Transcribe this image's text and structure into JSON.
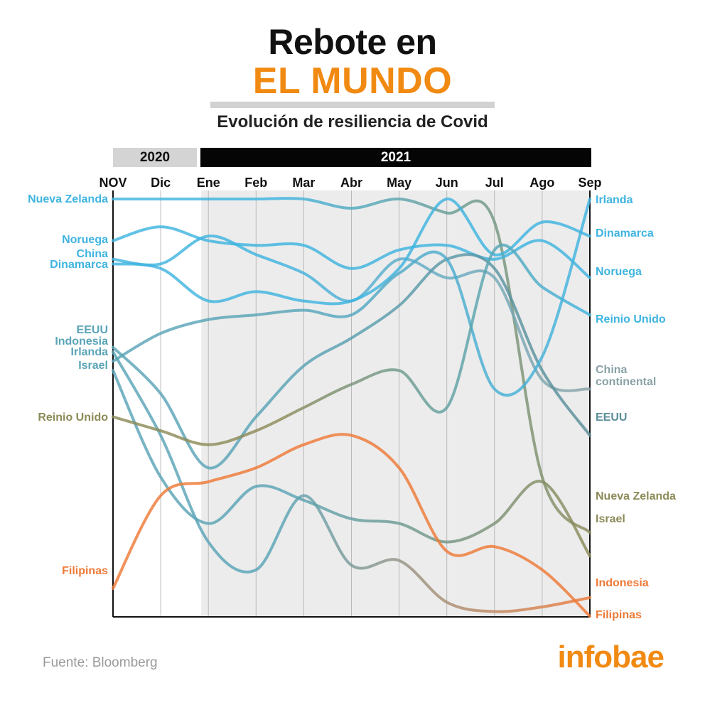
{
  "header": {
    "title_line1": "Rebote en",
    "title_line2": "EL MUNDO",
    "subtitle": "Evolución de resiliencia de Covid"
  },
  "years": {
    "y2020": "2020",
    "y2021": "2021"
  },
  "footer": {
    "source": "Fuente: Bloomberg",
    "logo": "infobae"
  },
  "chart_data": {
    "type": "line",
    "subtype": "bump chart (ranking)",
    "title": "Evolución de resiliencia de Covid",
    "x": [
      "NOV",
      "Dic",
      "Ene",
      "Feb",
      "Mar",
      "Abr",
      "May",
      "Jun",
      "Jul",
      "Ago",
      "Sep"
    ],
    "y_scale": "rank (1 = top)",
    "ylim": [
      1,
      10
    ],
    "grid": "vertical lines at each month",
    "shaded_region": [
      "Ene",
      "Sep"
    ],
    "series": [
      {
        "label_left": "Nueva Zelanda",
        "label_right": "Nueva Zelanda",
        "color_left": "#3fb4e0",
        "color_right": "#8c8a58",
        "values": [
          1,
          1,
          1,
          1,
          1,
          1.2,
          1,
          1.3,
          1.5,
          7.0,
          8.2
        ]
      },
      {
        "label_left": "Noruega",
        "label_right": "Noruega",
        "color_left": "#3fb4e0",
        "color_right": "#3fb4e0",
        "values": [
          1.9,
          1.6,
          1.9,
          2.0,
          2.0,
          2.5,
          2.1,
          2.0,
          2.3,
          1.9,
          2.7
        ]
      },
      {
        "label_left": "China",
        "label_right": "China continental",
        "color_left": "#3fb4e0",
        "color_right": "#8aa2a6",
        "values": [
          2.3,
          2.4,
          1.8,
          2.2,
          2.6,
          3.2,
          2.3,
          2.7,
          2.7,
          4.9,
          5.1
        ]
      },
      {
        "label_left": "Dinamarca",
        "label_right": "Dinamarca",
        "color_left": "#3fb4e0",
        "color_right": "#3fb4e0",
        "values": [
          2.4,
          2.5,
          3.2,
          3.0,
          3.2,
          3.2,
          2.5,
          1.0,
          2.2,
          1.5,
          1.8
        ]
      },
      {
        "label_left": "EEUU",
        "label_right": "EEUU",
        "color_left": "#5aa4b7",
        "color_right": "#5b8e98",
        "values": [
          4.2,
          5.2,
          6.8,
          5.7,
          4.6,
          4.0,
          3.3,
          2.3,
          2.5,
          4.7,
          6.1
        ]
      },
      {
        "label_left": "Indonesia",
        "label_right": "Indonesia",
        "color_left": "#5aa4b7",
        "color_right": "#ee7a37",
        "values": [
          4.3,
          6.1,
          8.4,
          9.0,
          7.4,
          8.9,
          8.8,
          9.7,
          9.9,
          9.8,
          9.6
        ]
      },
      {
        "label_left": "Irlanda",
        "label_right": "Irlanda",
        "color_left": "#5aa4b7",
        "color_right": "#3fb4e0",
        "values": [
          4.5,
          3.9,
          3.6,
          3.5,
          3.4,
          3.5,
          2.6,
          2.3,
          5.1,
          4.4,
          1.0
        ]
      },
      {
        "label_left": "Israel",
        "label_right": "Israel",
        "color_left": "#5aa4b7",
        "color_right": "#8c8a58",
        "values": [
          4.7,
          7.0,
          8.0,
          7.2,
          7.5,
          7.9,
          8.0,
          8.4,
          8.0,
          7.1,
          8.7
        ]
      },
      {
        "label_left": "Reinio Unido",
        "label_right": "Reinio Unido",
        "color_left": "#8c8a58",
        "color_right": "#3fb4e0",
        "values": [
          5.7,
          6.0,
          6.3,
          6.0,
          5.5,
          5.0,
          4.7,
          5.5,
          2.1,
          2.9,
          3.5
        ]
      },
      {
        "label_left": "Filipinas",
        "label_right": "Filipinas",
        "color_left": "#ee7a37",
        "color_right": "#ee7a37",
        "values": [
          9.4,
          7.4,
          7.1,
          6.8,
          6.3,
          6.1,
          6.8,
          8.6,
          8.5,
          9.0,
          10.0
        ]
      }
    ]
  }
}
